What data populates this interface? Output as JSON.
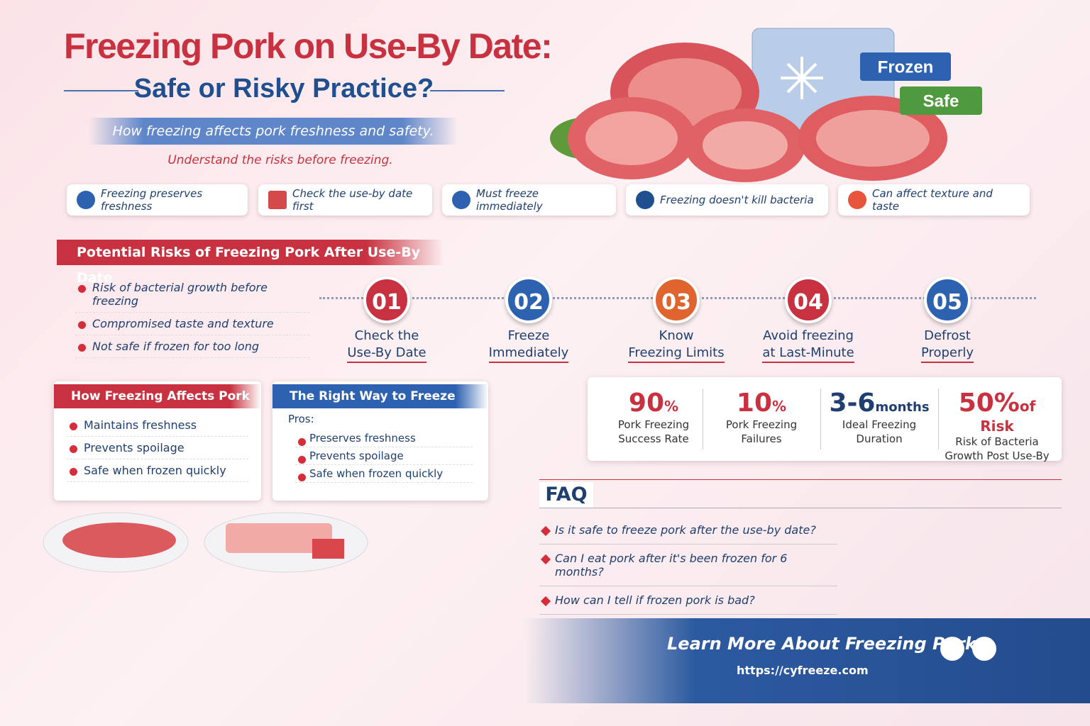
{
  "header": {
    "title": "Freezing Pork on Use-By Date:",
    "subtitle": "Safe or Risky Practice?",
    "tagline": "How freezing affects pork freshness and safety.",
    "note": "Understand the risks before freezing."
  },
  "badges": [
    "Frozen",
    "Safe"
  ],
  "chips": [
    "Freezing preserves freshness",
    "Check the use-by date first",
    "Must freeze immediately",
    "Freezing doesn't kill bacteria",
    "Can affect texture and taste"
  ],
  "risks": {
    "title": "Potential Risks of Freezing Pork After Use-By Date",
    "items": [
      "Risk of bacterial growth before freezing",
      "Compromised taste and texture",
      "Not safe if frozen for too long"
    ]
  },
  "steps": [
    {
      "number": "01",
      "lines": [
        "Check the",
        "Use-By Date"
      ]
    },
    {
      "number": "02",
      "lines": [
        "Freeze",
        "Immediately"
      ]
    },
    {
      "number": "03",
      "lines": [
        "Know",
        "Freezing Limits"
      ]
    },
    {
      "number": "04",
      "lines": [
        "Avoid freezing",
        "at Last-Minute"
      ]
    },
    {
      "number": "05",
      "lines": [
        "Defrost",
        "Properly"
      ]
    }
  ],
  "effects": {
    "title": "How Freezing Affects Pork",
    "items": [
      "Maintains freshness",
      "Prevents spoilage",
      "Safe when frozen quickly"
    ]
  },
  "right_way": {
    "title": "The Right Way to Freeze Pork",
    "pros_label": "Pros:",
    "items": [
      "Preserves freshness",
      "Prevents spoilage",
      "Safe when frozen quickly"
    ]
  },
  "stats": [
    {
      "value": "90",
      "unit": "%",
      "lines": [
        "Pork Freezing",
        "Success Rate"
      ]
    },
    {
      "value": "10",
      "unit": "%",
      "lines": [
        "Pork Freezing",
        "Failures"
      ]
    },
    {
      "value": "3-6",
      "unit": "months",
      "lines": [
        "Ideal Freezing",
        "Duration"
      ]
    },
    {
      "value": "50%",
      "unit": "of Risk",
      "lines": [
        "Risk of Bacteria",
        "Growth Post Use-By"
      ]
    }
  ],
  "faq": {
    "title": "FAQ",
    "questions": [
      "Is it safe to freeze pork after the use-by date?",
      "Can I eat pork after it's been frozen for 6 months?",
      "How can I tell if frozen pork is bad?"
    ]
  },
  "footer": {
    "title": "Learn More About Freezing Pork",
    "url": "https://cyfreeze.com"
  }
}
